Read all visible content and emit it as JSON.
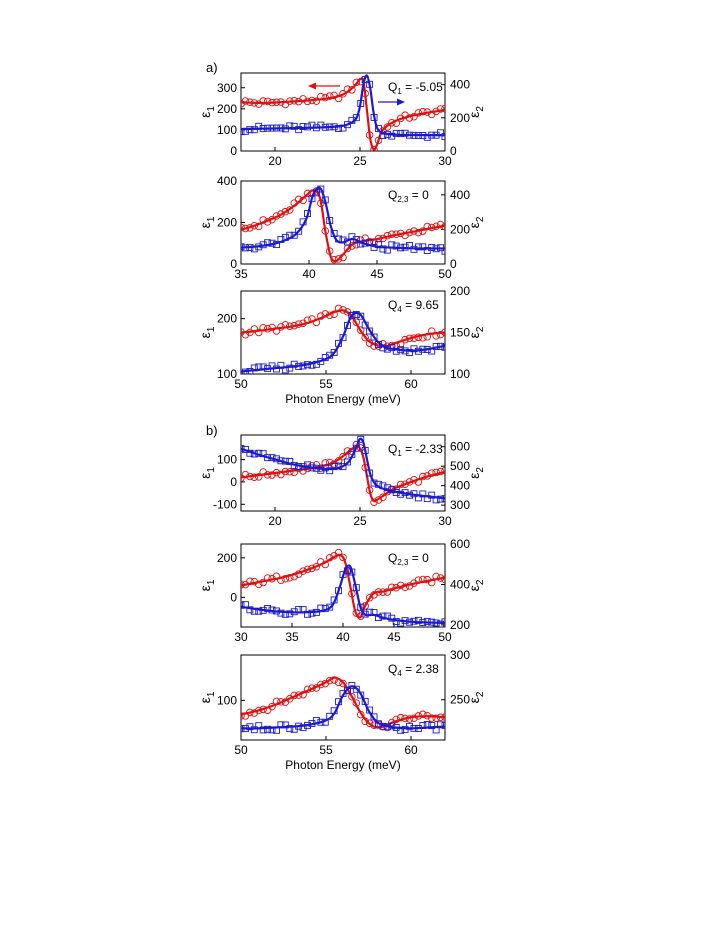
{
  "figure": {
    "panel_a_label": "a)",
    "panel_b_label": "b)"
  },
  "colors": {
    "eps1": "#e01010",
    "eps2": "#1a1acc",
    "axis": "#000000"
  },
  "chart_data": [
    {
      "id": "a1",
      "panel": "a",
      "type": "line",
      "xlim": [
        18,
        30
      ],
      "xticks": [
        20,
        25,
        30
      ],
      "left_axis": {
        "label": "ε1",
        "ylim": [
          0,
          370
        ],
        "ticks": [
          0,
          100,
          200,
          300
        ]
      },
      "right_axis": {
        "label": "ε2",
        "ylim": [
          0,
          470
        ],
        "ticks": [
          0,
          200,
          400
        ]
      },
      "annotation": {
        "prefix": "Q",
        "sub": "1",
        "suffix": " = -5.05"
      },
      "arrows": [
        {
          "series": "ε1",
          "direction": "left"
        },
        {
          "series": "ε2",
          "direction": "right"
        }
      ],
      "xlabel": "",
      "series": [
        {
          "name": "ε1",
          "axis": "left",
          "x": [
            18,
            19,
            20,
            21,
            22,
            23,
            23.5,
            24,
            24.5,
            24.8,
            25.0,
            25.2,
            25.4,
            25.6,
            25.8,
            26.0,
            26.3,
            26.8,
            27.5,
            28.5,
            30
          ],
          "y": [
            232,
            228,
            230,
            235,
            240,
            248,
            255,
            268,
            295,
            320,
            340,
            330,
            200,
            60,
            8,
            30,
            95,
            130,
            155,
            175,
            195
          ]
        },
        {
          "name": "ε2",
          "axis": "right",
          "x": [
            18,
            19,
            20,
            21,
            22,
            23,
            23.5,
            24,
            24.5,
            24.8,
            25.0,
            25.2,
            25.4,
            25.6,
            25.8,
            26.0,
            26.3,
            26.8,
            27.5,
            28.5,
            30
          ],
          "y": [
            132,
            134,
            136,
            138,
            140,
            143,
            146,
            152,
            170,
            200,
            270,
            400,
            455,
            380,
            230,
            140,
            110,
            100,
            97,
            96,
            95
          ]
        }
      ]
    },
    {
      "id": "a2",
      "panel": "a",
      "type": "line",
      "xlim": [
        35,
        50
      ],
      "xticks": [
        35,
        40,
        45,
        50
      ],
      "left_axis": {
        "label": "ε1",
        "ylim": [
          0,
          400
        ],
        "ticks": [
          0,
          200,
          400
        ]
      },
      "right_axis": {
        "label": "ε2",
        "ylim": [
          0,
          480
        ],
        "ticks": [
          0,
          200,
          400
        ]
      },
      "annotation": {
        "prefix": "Q",
        "sub": "2,3",
        "suffix": " = 0"
      },
      "arrows": [],
      "xlabel": "",
      "series": [
        {
          "name": "ε1",
          "axis": "left",
          "x": [
            35,
            36,
            37,
            38,
            39,
            39.8,
            40.3,
            40.8,
            41.2,
            41.6,
            42.0,
            42.5,
            43.2,
            44.0,
            45,
            46,
            48,
            50
          ],
          "y": [
            165,
            185,
            210,
            240,
            285,
            330,
            355,
            320,
            160,
            35,
            15,
            45,
            95,
            110,
            120,
            135,
            160,
            185
          ]
        },
        {
          "name": "ε2",
          "axis": "right",
          "x": [
            35,
            36,
            37,
            38,
            39,
            39.8,
            40.3,
            40.8,
            41.2,
            41.6,
            42.0,
            42.5,
            43.2,
            44.0,
            45,
            46,
            48,
            50
          ],
          "y": [
            95,
            100,
            110,
            130,
            170,
            260,
            400,
            440,
            360,
            220,
            140,
            125,
            145,
            120,
            100,
            95,
            90,
            90
          ]
        }
      ]
    },
    {
      "id": "a3",
      "panel": "a",
      "type": "line",
      "xlim": [
        50,
        62
      ],
      "xticks": [
        50,
        55,
        60
      ],
      "left_axis": {
        "label": "ε1",
        "ylim": [
          100,
          250
        ],
        "ticks": [
          100,
          200
        ]
      },
      "right_axis": {
        "label": "ε2",
        "ylim": [
          100,
          200
        ],
        "ticks": [
          100,
          150,
          200
        ]
      },
      "annotation": {
        "prefix": "Q",
        "sub": "4",
        "suffix": " = 9.65"
      },
      "arrows": [],
      "xlabel": "Photon Energy (meV)",
      "series": [
        {
          "name": "ε1",
          "axis": "left",
          "x": [
            50,
            51,
            52,
            53,
            54,
            55,
            55.5,
            56,
            56.5,
            57,
            57.5,
            58,
            58.5,
            59,
            60,
            61,
            62
          ],
          "y": [
            175,
            178,
            182,
            186,
            193,
            205,
            212,
            215,
            205,
            180,
            160,
            152,
            150,
            155,
            165,
            172,
            175
          ]
        },
        {
          "name": "ε2",
          "axis": "right",
          "x": [
            50,
            51,
            52,
            53,
            54,
            55,
            55.5,
            56,
            56.5,
            57,
            57.5,
            58,
            58.5,
            59,
            60,
            61,
            62
          ],
          "y": [
            103,
            105,
            107,
            109,
            112,
            118,
            126,
            145,
            170,
            172,
            155,
            140,
            132,
            130,
            128,
            130,
            134
          ]
        }
      ]
    },
    {
      "id": "b1",
      "panel": "b",
      "type": "line",
      "xlim": [
        18,
        30
      ],
      "xticks": [
        20,
        25,
        30
      ],
      "left_axis": {
        "label": "ε1",
        "ylim": [
          -130,
          210
        ],
        "ticks": [
          -100,
          0,
          100
        ]
      },
      "right_axis": {
        "label": "ε2",
        "ylim": [
          270,
          660
        ],
        "ticks": [
          300,
          400,
          500,
          600
        ]
      },
      "annotation": {
        "prefix": "Q",
        "sub": "1",
        "suffix": " = -2.33"
      },
      "arrows": [],
      "xlabel": "",
      "series": [
        {
          "name": "ε1",
          "axis": "left",
          "x": [
            18,
            19,
            20,
            21,
            22,
            23,
            23.5,
            24,
            24.4,
            24.8,
            25.0,
            25.2,
            25.4,
            25.6,
            25.8,
            26.0,
            26.5,
            27,
            28,
            29,
            30
          ],
          "y": [
            20,
            30,
            40,
            50,
            60,
            75,
            90,
            115,
            140,
            160,
            150,
            110,
            30,
            -50,
            -85,
            -80,
            -55,
            -30,
            0,
            25,
            45
          ]
        },
        {
          "name": "ε2",
          "axis": "right",
          "x": [
            18,
            19,
            20,
            21,
            22,
            23,
            23.5,
            24,
            24.4,
            24.8,
            25.0,
            25.2,
            25.4,
            25.6,
            25.8,
            26.0,
            26.5,
            27,
            28,
            29,
            30
          ],
          "y": [
            590,
            560,
            535,
            510,
            495,
            485,
            487,
            500,
            530,
            600,
            640,
            620,
            540,
            460,
            420,
            400,
            380,
            370,
            355,
            345,
            335
          ]
        }
      ]
    },
    {
      "id": "b2",
      "panel": "b",
      "type": "line",
      "xlim": [
        30,
        50
      ],
      "xticks": [
        30,
        35,
        40,
        45,
        50
      ],
      "left_axis": {
        "label": "ε1",
        "ylim": [
          -150,
          270
        ],
        "ticks": [
          0,
          200
        ]
      },
      "right_axis": {
        "label": "ε2",
        "ylim": [
          190,
          600
        ],
        "ticks": [
          200,
          400,
          600
        ]
      },
      "annotation": {
        "prefix": "Q",
        "sub": "2,3",
        "suffix": " = 0"
      },
      "arrows": [],
      "xlabel": "",
      "series": [
        {
          "name": "ε1",
          "axis": "left",
          "x": [
            30,
            32,
            34,
            36,
            38,
            39,
            39.7,
            40.2,
            40.7,
            41.2,
            41.7,
            42.2,
            43,
            44,
            45,
            47,
            50
          ],
          "y": [
            60,
            80,
            100,
            130,
            170,
            200,
            215,
            180,
            60,
            -70,
            -100,
            -40,
            20,
            30,
            45,
            70,
            100
          ]
        },
        {
          "name": "ε2",
          "axis": "right",
          "x": [
            30,
            32,
            34,
            36,
            38,
            39,
            39.7,
            40.2,
            40.7,
            41.2,
            41.7,
            42.2,
            43,
            44,
            45,
            47,
            50
          ],
          "y": [
            290,
            275,
            265,
            262,
            270,
            300,
            390,
            470,
            490,
            400,
            290,
            250,
            250,
            235,
            225,
            215,
            210
          ]
        }
      ]
    },
    {
      "id": "b3",
      "panel": "b",
      "type": "line",
      "xlim": [
        50,
        62
      ],
      "xticks": [
        50,
        55,
        60
      ],
      "left_axis": {
        "label": "ε1",
        "ylim": [
          30,
          180
        ],
        "ticks": [
          100
        ]
      },
      "right_axis": {
        "label": "ε2",
        "ylim": [
          205,
          300
        ],
        "ticks": [
          250,
          300
        ]
      },
      "annotation": {
        "prefix": "Q",
        "sub": "4",
        "suffix": " = 2.38"
      },
      "arrows": [],
      "xlabel": "Photon Energy (meV)",
      "series": [
        {
          "name": "ε1",
          "axis": "left",
          "x": [
            50,
            51,
            52,
            53,
            54,
            55,
            55.5,
            56,
            56.5,
            57,
            57.5,
            58,
            58.5,
            59,
            60,
            61,
            62
          ],
          "y": [
            75,
            82,
            92,
            105,
            118,
            132,
            140,
            132,
            108,
            80,
            60,
            52,
            55,
            62,
            70,
            72,
            70
          ]
        },
        {
          "name": "ε2",
          "axis": "right",
          "x": [
            50,
            51,
            52,
            53,
            54,
            55,
            55.5,
            56,
            56.5,
            57,
            57.5,
            58,
            58.5,
            59,
            60,
            61,
            62
          ],
          "y": [
            218,
            218,
            219,
            220,
            222,
            227,
            235,
            255,
            265,
            258,
            238,
            225,
            221,
            219,
            218,
            219,
            220
          ]
        }
      ]
    }
  ]
}
